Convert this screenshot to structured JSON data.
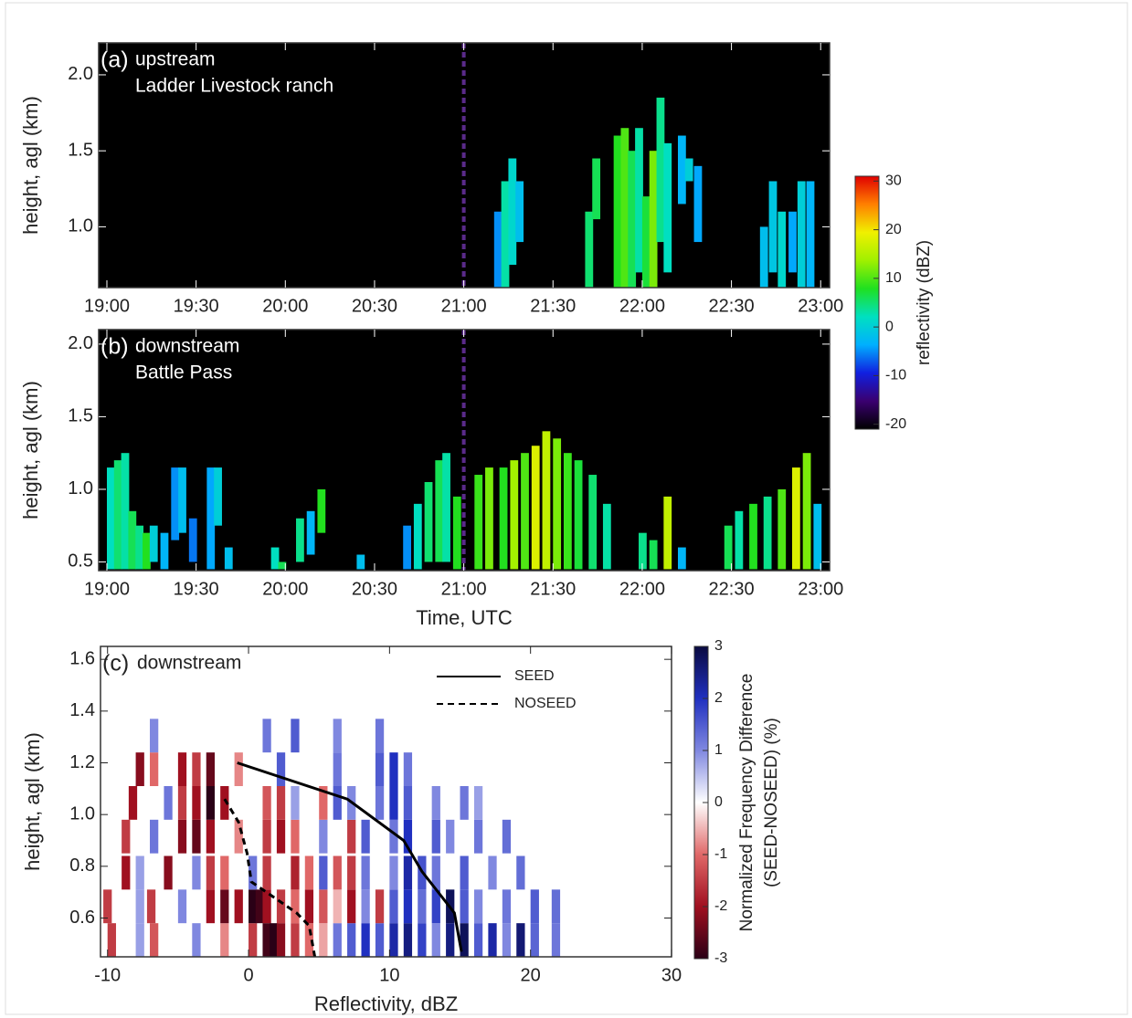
{
  "chart_data": [
    {
      "type": "heatmap",
      "panel_label": "(a)",
      "title": "upstream",
      "subtitle": "Ladder Livestock ranch",
      "ylabel": "height, agl (km)",
      "xlim": [
        18.954,
        23.05
      ],
      "ylim": [
        0.6,
        2.21
      ],
      "xticks": [
        {
          "value": 19,
          "label": "19:00"
        },
        {
          "value": 19.5,
          "label": "19:30"
        },
        {
          "value": 20,
          "label": "20:00"
        },
        {
          "value": 20.5,
          "label": "20:30"
        },
        {
          "value": 21,
          "label": "21:00"
        },
        {
          "value": 21.5,
          "label": "21:30"
        },
        {
          "value": 22,
          "label": "22:00"
        },
        {
          "value": 22.5,
          "label": "22:30"
        },
        {
          "value": 23,
          "label": "23:00"
        }
      ],
      "yticks": [
        {
          "value": 1,
          "label": "1.0"
        },
        1.5,
        {
          "value": 2,
          "label": "2.0"
        }
      ],
      "vline": 21,
      "vline_color": "#5a2a8a",
      "background": "#000000",
      "x": [
        21.17,
        21.21,
        21.25,
        21.29,
        21.68,
        21.72,
        21.84,
        21.88,
        21.92,
        21.96,
        22.0,
        22.04,
        22.08,
        22.12,
        22.2,
        22.24,
        22.29,
        22.66,
        22.71,
        22.76,
        22.82,
        22.87,
        22.92
      ],
      "bottom": [
        0.6,
        0.6,
        0.75,
        0.9,
        0.6,
        1.05,
        0.6,
        0.6,
        0.6,
        0.7,
        0.6,
        0.6,
        0.9,
        0.7,
        1.15,
        1.3,
        0.9,
        0.6,
        0.7,
        0.6,
        0.7,
        0.6,
        0.6
      ],
      "top": [
        1.1,
        1.3,
        1.45,
        1.3,
        1.1,
        1.45,
        1.6,
        1.65,
        1.5,
        1.65,
        1.2,
        1.5,
        1.85,
        1.55,
        1.6,
        1.45,
        1.4,
        1.0,
        1.3,
        1.1,
        1.1,
        1.3,
        1.3
      ],
      "values": [
        -5,
        3,
        1,
        -2,
        5,
        6,
        8,
        10,
        6,
        3,
        7,
        12,
        4,
        2,
        -3,
        0,
        -4,
        -2,
        -1,
        1,
        -4,
        0,
        -3
      ],
      "colorbar": {
        "label": "reflectivity (dBZ)",
        "clim": [
          -21,
          31
        ],
        "ticks": [
          30,
          20,
          10,
          0,
          -10,
          -20
        ],
        "colors": [
          "#000000",
          "#3a0070",
          "#1020e0",
          "#00b0ff",
          "#00e0c0",
          "#20e020",
          "#a0f000",
          "#f0f000",
          "#ff8000",
          "#e00000"
        ]
      }
    },
    {
      "type": "heatmap",
      "panel_label": "(b)",
      "title": "downstream",
      "subtitle": "Battle Pass",
      "ylabel": "height, agl (km)",
      "xlabel": "Time, UTC",
      "xlim": [
        18.954,
        23.05
      ],
      "ylim": [
        0.44,
        2.1
      ],
      "xticks": [
        {
          "value": 19,
          "label": "19:00"
        },
        {
          "value": 19.5,
          "label": "19:30"
        },
        {
          "value": 20,
          "label": "20:00"
        },
        {
          "value": 20.5,
          "label": "20:30"
        },
        {
          "value": 21,
          "label": "21:00"
        },
        {
          "value": 21.5,
          "label": "21:30"
        },
        {
          "value": 22,
          "label": "22:00"
        },
        {
          "value": 22.5,
          "label": "22:30"
        },
        {
          "value": 23,
          "label": "23:00"
        }
      ],
      "yticks": [
        0.5,
        {
          "value": 1,
          "label": "1.0"
        },
        1.5,
        {
          "value": 2,
          "label": "2.0"
        }
      ],
      "vline": 21,
      "vline_color": "#5a2a8a",
      "background": "#000000",
      "x": [
        19.0,
        19.04,
        19.08,
        19.12,
        19.16,
        19.2,
        19.24,
        19.3,
        19.36,
        19.4,
        19.46,
        19.56,
        19.6,
        19.66,
        19.92,
        19.96,
        20.06,
        20.12,
        20.18,
        20.4,
        20.66,
        20.72,
        20.78,
        20.84,
        20.88,
        20.94,
        21.06,
        21.12,
        21.2,
        21.26,
        21.32,
        21.38,
        21.44,
        21.5,
        21.56,
        21.62,
        21.7,
        21.78,
        21.98,
        22.04,
        22.12,
        22.2,
        22.46,
        22.52,
        22.6,
        22.68,
        22.76,
        22.84,
        22.9,
        22.96
      ],
      "bottom": [
        0.45,
        0.45,
        0.45,
        0.45,
        0.45,
        0.45,
        0.5,
        0.45,
        0.65,
        0.7,
        0.5,
        0.45,
        0.75,
        0.45,
        0.45,
        0.45,
        0.5,
        0.55,
        0.7,
        0.45,
        0.45,
        0.45,
        0.5,
        0.5,
        0.5,
        0.45,
        0.45,
        0.45,
        0.45,
        0.45,
        0.45,
        0.45,
        0.45,
        0.45,
        0.45,
        0.45,
        0.45,
        0.45,
        0.45,
        0.45,
        0.45,
        0.45,
        0.45,
        0.45,
        0.45,
        0.45,
        0.45,
        0.45,
        0.45,
        0.45
      ],
      "top": [
        1.15,
        1.2,
        1.25,
        0.85,
        0.75,
        0.7,
        0.75,
        0.7,
        1.15,
        1.15,
        0.8,
        1.15,
        1.15,
        0.6,
        0.6,
        0.5,
        0.8,
        0.85,
        1.0,
        0.55,
        0.75,
        0.9,
        1.05,
        1.2,
        1.25,
        0.95,
        1.1,
        1.15,
        1.15,
        1.2,
        1.25,
        1.3,
        1.4,
        1.35,
        1.25,
        1.2,
        1.1,
        0.9,
        0.7,
        0.65,
        0.95,
        0.6,
        0.75,
        0.85,
        0.9,
        0.95,
        1.0,
        1.15,
        1.25,
        0.9
      ],
      "values": [
        2,
        5,
        3,
        6,
        4,
        8,
        0,
        -3,
        -5,
        -2,
        -6,
        -4,
        0,
        -2,
        2,
        6,
        4,
        -3,
        8,
        -2,
        -5,
        2,
        5,
        6,
        3,
        8,
        9,
        12,
        8,
        14,
        10,
        18,
        16,
        12,
        9,
        7,
        5,
        3,
        4,
        6,
        16,
        -3,
        6,
        3,
        8,
        4,
        10,
        18,
        12,
        -2
      ]
    },
    {
      "type": "heatmap",
      "panel_label": "(c)",
      "title": "downstream",
      "ylabel": "height, agl (km)",
      "xlabel": "Reflectivity, dBZ",
      "xlim": [
        -10.5,
        30
      ],
      "ylim": [
        0.45,
        1.65
      ],
      "xticks": [
        -10,
        0,
        10,
        20,
        30
      ],
      "yticks": [
        0.6,
        0.8,
        {
          "value": 1,
          "label": "1.0"
        },
        1.2,
        1.4,
        1.6
      ],
      "background": "#ffffff",
      "legend": "upper right",
      "x": [
        -10,
        -8,
        -7,
        -4,
        -2,
        0,
        1,
        1.5,
        2,
        3,
        4,
        5,
        6,
        7,
        8,
        9,
        10,
        11,
        12,
        13,
        14,
        15,
        16,
        17,
        18,
        19,
        20,
        21.5,
        -10.3,
        -8,
        -7.2,
        -5,
        -3,
        -2,
        -1,
        0,
        0.5,
        1,
        2,
        3,
        4,
        5,
        6,
        7,
        8,
        9,
        10,
        11,
        12,
        13,
        14,
        15,
        16,
        18,
        20,
        21.5,
        -9,
        -8,
        -6,
        -4,
        -3,
        -2,
        0,
        1,
        3,
        4,
        5,
        6,
        7,
        8,
        10,
        11,
        12,
        13,
        15,
        17,
        19,
        -9,
        -7,
        -5,
        -4,
        -3,
        -1,
        1,
        2,
        3,
        5,
        7,
        8,
        10,
        11,
        13,
        14,
        16,
        18,
        -8.5,
        -6,
        -5,
        -4,
        -3,
        -2,
        1,
        2,
        3,
        5,
        6,
        7,
        9,
        10,
        11,
        13,
        15,
        16,
        -8,
        -7,
        -5,
        -4,
        -3,
        -1,
        2,
        6,
        9,
        10,
        11,
        -7,
        1,
        3,
        6,
        9
      ],
      "y": [
        0.45,
        0.45,
        0.45,
        0.45,
        0.45,
        0.45,
        0.45,
        0.45,
        0.45,
        0.45,
        0.45,
        0.45,
        0.45,
        0.45,
        0.45,
        0.45,
        0.45,
        0.45,
        0.45,
        0.45,
        0.45,
        0.45,
        0.45,
        0.45,
        0.45,
        0.45,
        0.45,
        0.45,
        0.58,
        0.58,
        0.58,
        0.58,
        0.58,
        0.58,
        0.58,
        0.58,
        0.58,
        0.58,
        0.58,
        0.58,
        0.58,
        0.58,
        0.58,
        0.58,
        0.58,
        0.58,
        0.58,
        0.58,
        0.58,
        0.58,
        0.58,
        0.58,
        0.58,
        0.58,
        0.58,
        0.58,
        0.71,
        0.71,
        0.71,
        0.71,
        0.71,
        0.71,
        0.71,
        0.71,
        0.71,
        0.71,
        0.71,
        0.71,
        0.71,
        0.71,
        0.71,
        0.71,
        0.71,
        0.71,
        0.71,
        0.71,
        0.71,
        0.85,
        0.85,
        0.85,
        0.85,
        0.85,
        0.85,
        0.85,
        0.85,
        0.85,
        0.85,
        0.85,
        0.85,
        0.85,
        0.85,
        0.85,
        0.85,
        0.85,
        0.85,
        0.98,
        0.98,
        0.98,
        0.98,
        0.98,
        0.98,
        0.98,
        0.98,
        0.98,
        0.98,
        0.98,
        0.98,
        0.98,
        0.98,
        0.98,
        0.98,
        0.98,
        0.98,
        1.11,
        1.11,
        1.11,
        1.11,
        1.11,
        1.11,
        1.11,
        1.11,
        1.11,
        1.11,
        1.11,
        1.24,
        1.24,
        1.24,
        1.24,
        1.24
      ],
      "values": [
        -1.5,
        0.8,
        -1.2,
        1,
        -0.8,
        -1.5,
        -2.8,
        -3,
        -2.2,
        -1.5,
        -1,
        -0.6,
        1.2,
        1.5,
        2,
        1.5,
        2.2,
        2.5,
        1.8,
        1,
        2.5,
        2.8,
        1.5,
        2.2,
        1,
        2.6,
        1.4,
        1.2,
        -1.5,
        0.8,
        -1.5,
        1,
        -2,
        -2.5,
        -2,
        -3,
        -2.8,
        -2,
        -1.5,
        -1,
        -2,
        -1.2,
        -0.5,
        -2,
        1,
        -1.5,
        1.5,
        2,
        1.3,
        1.8,
        2.8,
        1.5,
        1,
        1.2,
        1.5,
        1.3,
        -2,
        0.8,
        -2.2,
        1,
        -1.5,
        -1,
        1.2,
        -1.5,
        -1.8,
        -1,
        1.5,
        -1.2,
        -1.5,
        1.2,
        1,
        2.2,
        1.6,
        1.2,
        1.5,
        1,
        1.3,
        -1.5,
        1.2,
        -2.2,
        -2.5,
        -2,
        -0.8,
        -1.5,
        -2,
        -1,
        1,
        -1.5,
        1.5,
        1.2,
        2,
        1.5,
        1,
        1.2,
        1.3,
        -2,
        1.2,
        -1.5,
        -2,
        -3,
        -2,
        -1.2,
        -1.5,
        0.8,
        -1,
        1.5,
        1,
        1.2,
        2,
        1.5,
        1,
        1.2,
        0.8,
        -2.2,
        -1,
        -2,
        -1.5,
        -2.5,
        -0.8,
        1.5,
        1.2,
        1.5,
        2,
        1.2,
        1,
        1.2,
        1.5,
        1,
        1.2
      ],
      "series": [
        {
          "name": "SEED",
          "color": "#000000",
          "style": "solid",
          "x": [
            -0.8,
            7,
            11,
            12.3,
            14.6,
            15.1
          ],
          "y": [
            1.2,
            1.06,
            0.9,
            0.78,
            0.62,
            0.47
          ]
        },
        {
          "name": "NOSEED",
          "color": "#000000",
          "style": "dashed",
          "x": [
            -1.7,
            -0.7,
            -0.1,
            0.2,
            3.4,
            4.3,
            4.7
          ],
          "y": [
            1.06,
            0.97,
            0.85,
            0.74,
            0.62,
            0.57,
            0.45
          ]
        }
      ],
      "colorbar": {
        "label": [
          "Normalized Frequency Difference",
          "(SEED-NOSEED) (%)"
        ],
        "clim": [
          -3,
          3
        ],
        "ticks": [
          3,
          2,
          1,
          0,
          -1,
          -2,
          -3
        ],
        "colors": [
          "#2a0016",
          "#a01020",
          "#e06868",
          "#ffffff",
          "#8088e0",
          "#2030c0",
          "#0a0a40"
        ]
      }
    }
  ]
}
